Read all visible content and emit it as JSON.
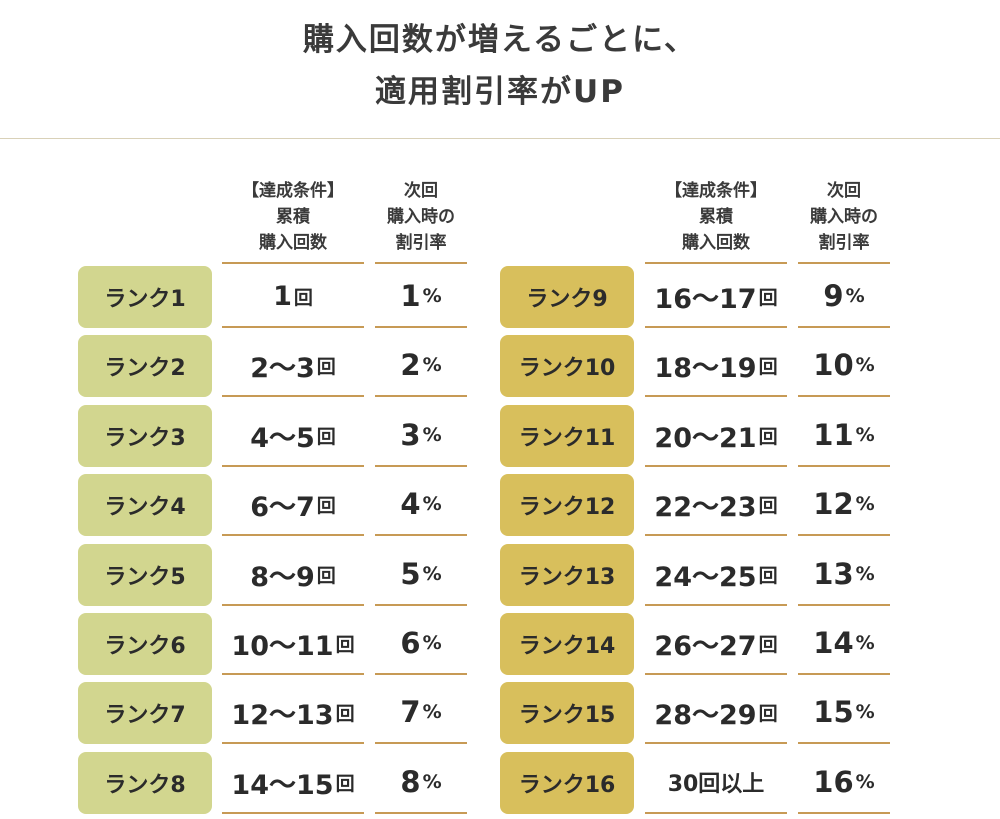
{
  "headline": {
    "line1": "購入回数が増えるごとに、",
    "line2": "適用割引率がUP"
  },
  "header": {
    "condition": [
      "【達成条件】",
      "累積",
      "購入回数"
    ],
    "discount": [
      "次回",
      "購入時の",
      "割引率"
    ]
  },
  "rows": [
    {
      "rank": "ランク1",
      "count": "1",
      "count_unit": "回",
      "discount": "1",
      "discount_unit": "%"
    },
    {
      "rank": "ランク2",
      "count": "2〜3",
      "count_unit": "回",
      "discount": "2",
      "discount_unit": "%"
    },
    {
      "rank": "ランク3",
      "count": "4〜5",
      "count_unit": "回",
      "discount": "3",
      "discount_unit": "%"
    },
    {
      "rank": "ランク4",
      "count": "6〜7",
      "count_unit": "回",
      "discount": "4",
      "discount_unit": "%"
    },
    {
      "rank": "ランク5",
      "count": "8〜9",
      "count_unit": "回",
      "discount": "5",
      "discount_unit": "%"
    },
    {
      "rank": "ランク6",
      "count": "10〜11",
      "count_unit": "回",
      "discount": "6",
      "discount_unit": "%"
    },
    {
      "rank": "ランク7",
      "count": "12〜13",
      "count_unit": "回",
      "discount": "7",
      "discount_unit": "%"
    },
    {
      "rank": "ランク8",
      "count": "14〜15",
      "count_unit": "回",
      "discount": "8",
      "discount_unit": "%"
    },
    {
      "rank": "ランク9",
      "count": "16〜17",
      "count_unit": "回",
      "discount": "9",
      "discount_unit": "%"
    },
    {
      "rank": "ランク10",
      "count": "18〜19",
      "count_unit": "回",
      "discount": "10",
      "discount_unit": "%"
    },
    {
      "rank": "ランク11",
      "count": "20〜21",
      "count_unit": "回",
      "discount": "11",
      "discount_unit": "%"
    },
    {
      "rank": "ランク12",
      "count": "22〜23",
      "count_unit": "回",
      "discount": "12",
      "discount_unit": "%"
    },
    {
      "rank": "ランク13",
      "count": "24〜25",
      "count_unit": "回",
      "discount": "13",
      "discount_unit": "%"
    },
    {
      "rank": "ランク14",
      "count": "26〜27",
      "count_unit": "回",
      "discount": "14",
      "discount_unit": "%"
    },
    {
      "rank": "ランク15",
      "count": "28〜29",
      "count_unit": "回",
      "discount": "15",
      "discount_unit": "%"
    },
    {
      "rank": "ランク16",
      "count": "30回以上",
      "count_unit": "",
      "discount": "16",
      "discount_unit": "%"
    }
  ],
  "colors": {
    "rank_low": "#d2d68f",
    "rank_high": "#d8bf5c",
    "rule": "#c79a55"
  }
}
